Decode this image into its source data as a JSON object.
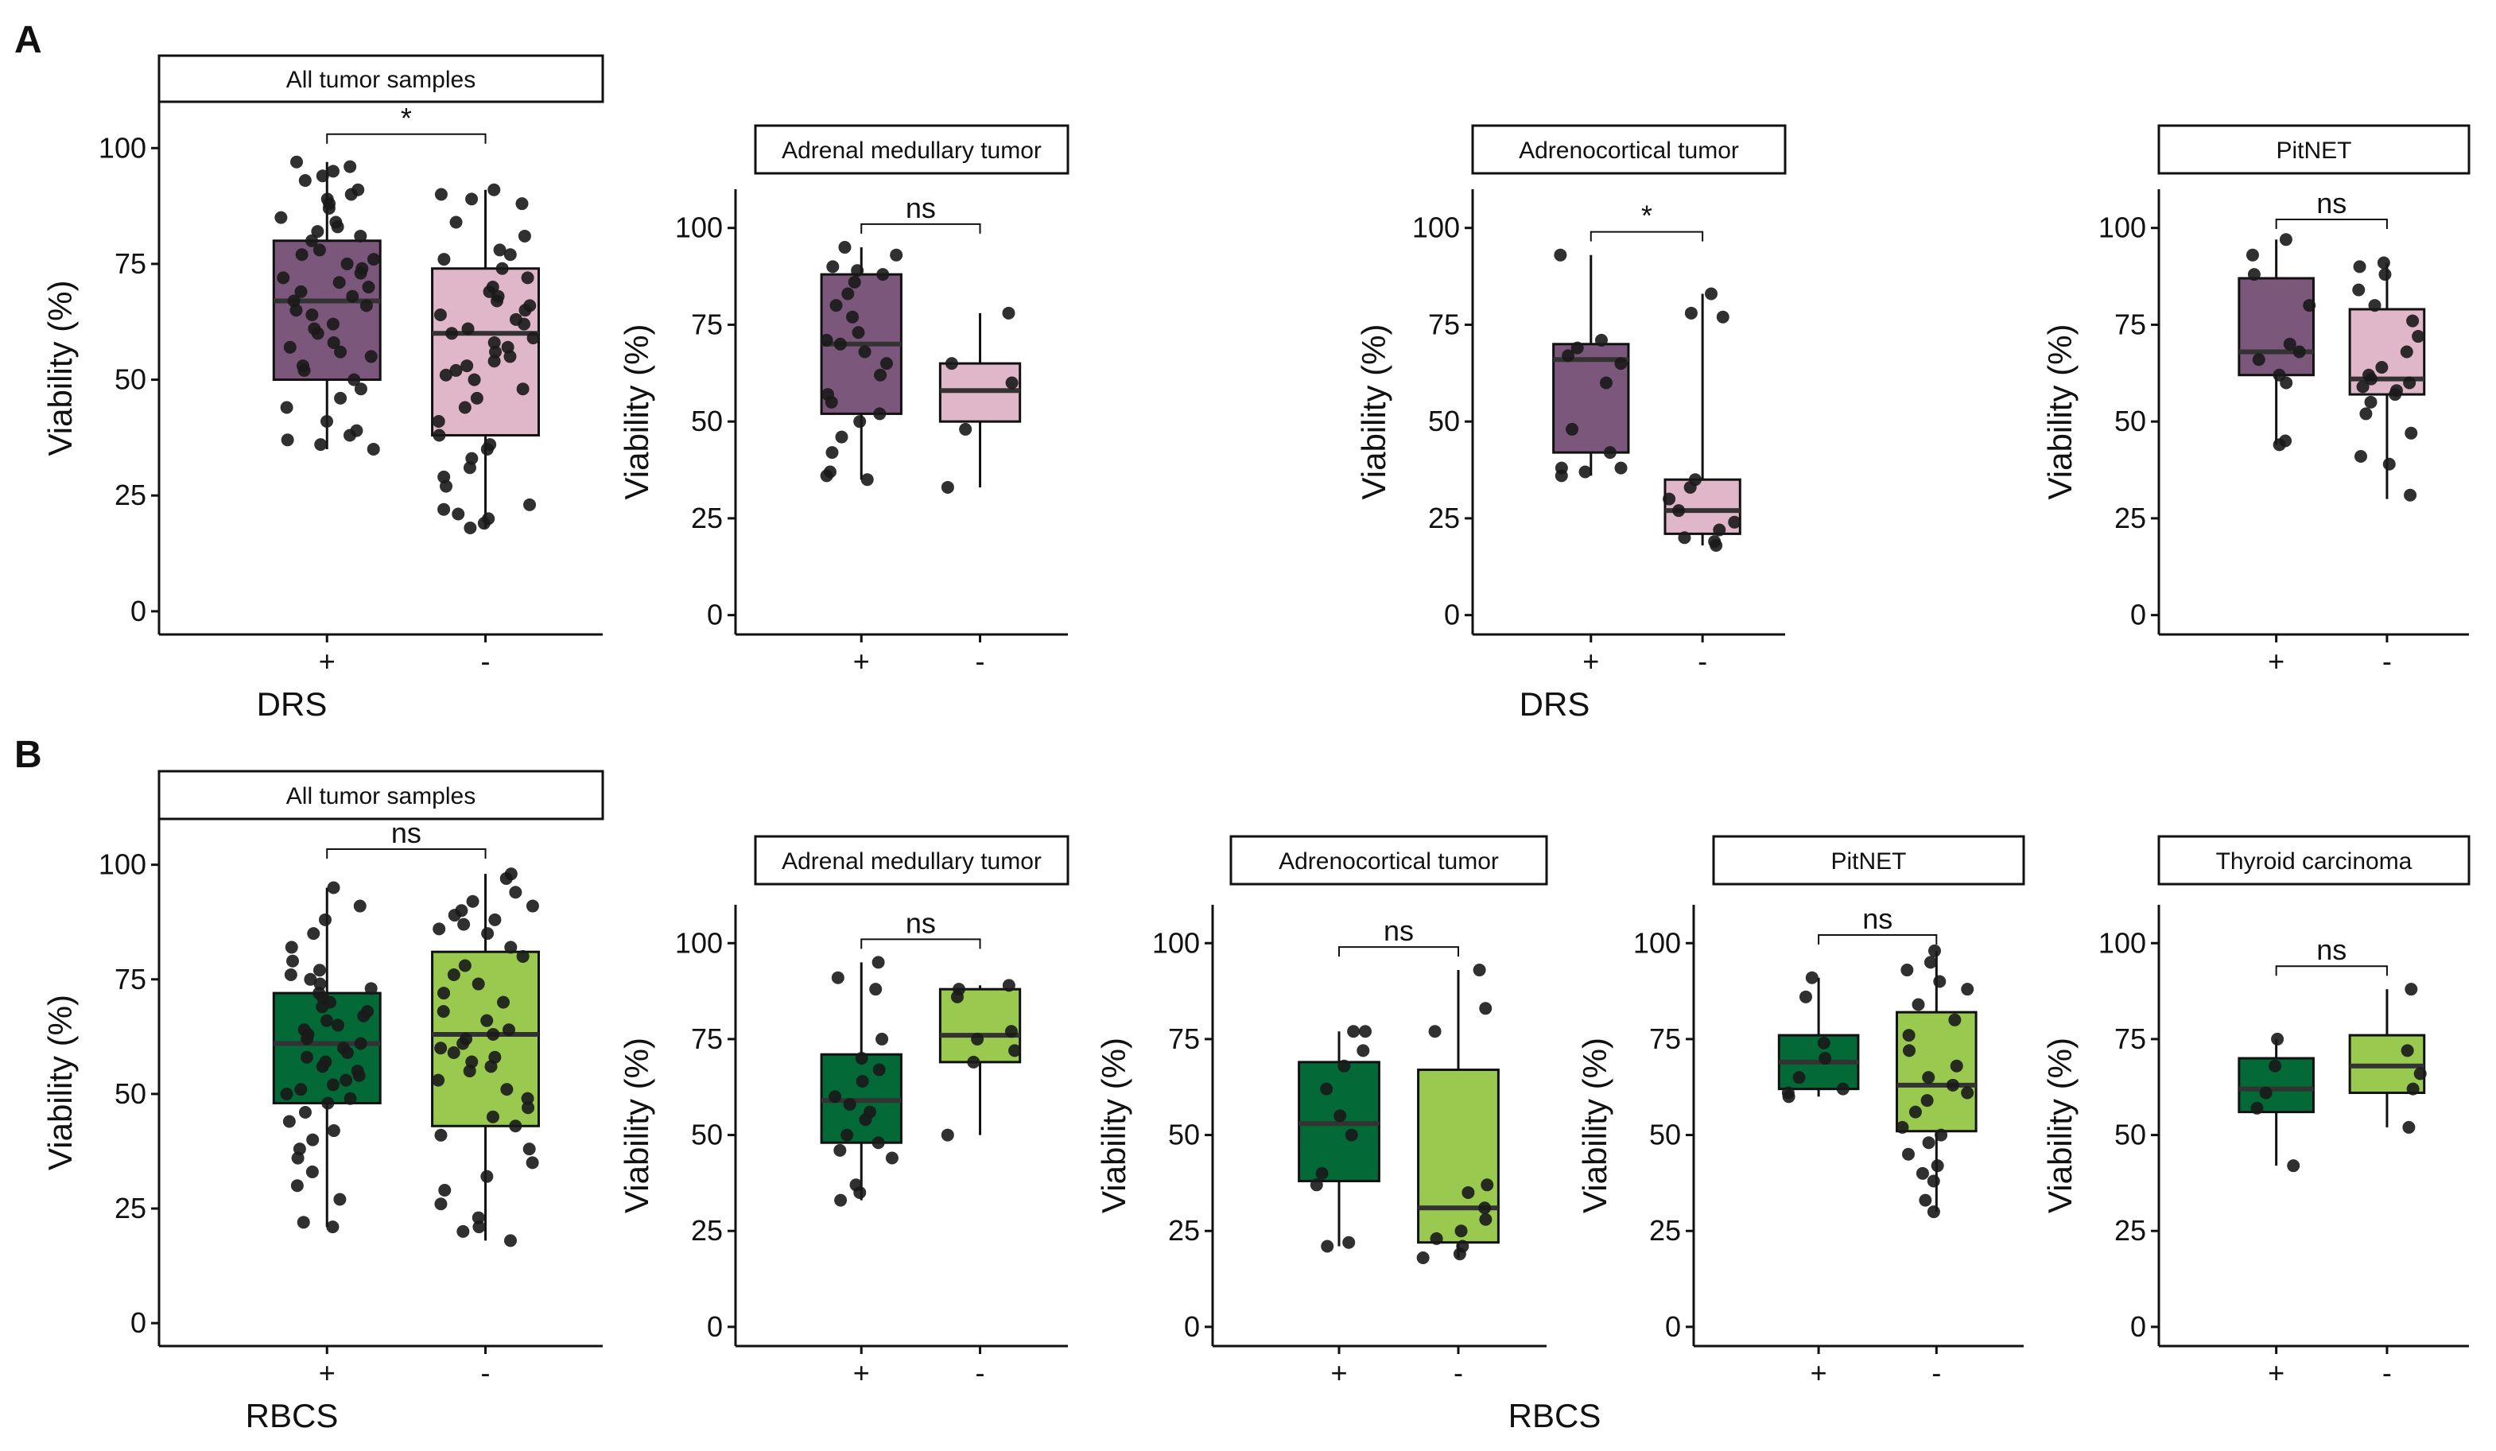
{
  "panel_labels": [
    "A",
    "B"
  ],
  "colors": {
    "drs_plus": "#7b577b",
    "drs_minus": "#e0b6c9",
    "rbcs_plus": "#036a37",
    "rbcs_minus": "#99c94f",
    "axis": "#111111",
    "point": "#1a1a1a"
  },
  "chart_data": [
    {
      "id": "A1",
      "type": "box",
      "row": "A",
      "facet": "All tumor samples",
      "marker": "DRS",
      "xlabel": "DRS",
      "ylabel": "Viability (%)",
      "categories": [
        "+",
        "-"
      ],
      "yticks": [
        0,
        25,
        50,
        75,
        100
      ],
      "ylim": [
        -5,
        110
      ],
      "significance": "*",
      "boxes": [
        {
          "category": "+",
          "q1": 50,
          "median": 67,
          "q3": 80,
          "whisker_low": 35,
          "whisker_high": 97,
          "points": [
            97,
            96,
            95,
            94,
            93,
            91,
            90,
            89,
            88,
            87,
            85,
            84,
            83,
            82,
            81,
            80,
            78,
            77,
            76,
            75,
            74,
            73,
            72,
            71,
            70,
            69,
            68,
            67,
            66,
            65,
            64,
            62,
            61,
            60,
            58,
            57,
            56,
            55,
            53,
            52,
            50,
            48,
            46,
            44,
            41,
            39,
            38,
            37,
            36,
            35
          ]
        },
        {
          "category": "-",
          "q1": 38,
          "median": 60,
          "q3": 74,
          "whisker_low": 18,
          "whisker_high": 91,
          "points": [
            91,
            90,
            89,
            88,
            84,
            81,
            78,
            77,
            76,
            74,
            72,
            70,
            69,
            68,
            67,
            66,
            65,
            64,
            63,
            62,
            61,
            60,
            59,
            58,
            57,
            56,
            55,
            54,
            53,
            52,
            51,
            50,
            48,
            46,
            44,
            41,
            38,
            36,
            35,
            33,
            31,
            29,
            27,
            23,
            22,
            21,
            20,
            19,
            18
          ]
        }
      ]
    },
    {
      "id": "A2",
      "type": "box",
      "row": "A",
      "facet": "Adrenal medullary tumor",
      "marker": "DRS",
      "xlabel": "",
      "ylabel": "Viability (%)",
      "categories": [
        "+",
        "-"
      ],
      "yticks": [
        0,
        25,
        50,
        75,
        100
      ],
      "ylim": [
        -5,
        110
      ],
      "significance": "ns",
      "boxes": [
        {
          "category": "+",
          "q1": 52,
          "median": 70,
          "q3": 88,
          "whisker_low": 35,
          "whisker_high": 95,
          "points": [
            95,
            93,
            90,
            89,
            88,
            86,
            83,
            80,
            77,
            73,
            71,
            70,
            68,
            65,
            62,
            57,
            55,
            52,
            50,
            46,
            42,
            37,
            36,
            35
          ]
        },
        {
          "category": "-",
          "q1": 50,
          "median": 58,
          "q3": 65,
          "whisker_low": 33,
          "whisker_high": 78,
          "points": [
            78,
            65,
            60,
            48,
            33
          ]
        }
      ]
    },
    {
      "id": "A3",
      "type": "box",
      "row": "A",
      "facet": "Adrenocortical tumor",
      "marker": "DRS",
      "xlabel": "DRS",
      "ylabel": "Viability (%)",
      "categories": [
        "+",
        "-"
      ],
      "yticks": [
        0,
        25,
        50,
        75,
        100
      ],
      "ylim": [
        -5,
        110
      ],
      "significance": "*",
      "boxes": [
        {
          "category": "+",
          "q1": 42,
          "median": 66,
          "q3": 70,
          "whisker_low": 36,
          "whisker_high": 93,
          "points": [
            93,
            71,
            69,
            67,
            65,
            60,
            48,
            42,
            38,
            38,
            37,
            36
          ]
        },
        {
          "category": "-",
          "q1": 21,
          "median": 27,
          "q3": 35,
          "whisker_low": 18,
          "whisker_high": 83,
          "points": [
            83,
            78,
            77,
            35,
            33,
            30,
            27,
            24,
            22,
            20,
            19,
            18
          ]
        }
      ]
    },
    {
      "id": "A4",
      "type": "box",
      "row": "A",
      "facet": "PitNET",
      "marker": "DRS",
      "xlabel": "",
      "ylabel": "Viability (%)",
      "categories": [
        "+",
        "-"
      ],
      "yticks": [
        0,
        25,
        50,
        75,
        100
      ],
      "ylim": [
        -5,
        110
      ],
      "significance": "ns",
      "boxes": [
        {
          "category": "+",
          "q1": 62,
          "median": 68,
          "q3": 87,
          "whisker_low": 44,
          "whisker_high": 97,
          "points": [
            97,
            93,
            88,
            80,
            70,
            68,
            66,
            62,
            60,
            45,
            44
          ]
        },
        {
          "category": "-",
          "q1": 57,
          "median": 61,
          "q3": 79,
          "whisker_low": 30,
          "whisker_high": 91,
          "points": [
            91,
            90,
            88,
            84,
            80,
            76,
            72,
            68,
            64,
            62,
            61,
            60,
            59,
            58,
            57,
            55,
            52,
            47,
            41,
            39,
            31
          ]
        }
      ]
    },
    {
      "id": "B1",
      "type": "box",
      "row": "B",
      "facet": "All tumor samples",
      "marker": "RBCS",
      "xlabel": "RBCS",
      "ylabel": "Viability (%)",
      "categories": [
        "+",
        "-"
      ],
      "yticks": [
        0,
        25,
        50,
        75,
        100
      ],
      "ylim": [
        -5,
        110
      ],
      "significance": "ns",
      "boxes": [
        {
          "category": "+",
          "q1": 48,
          "median": 61,
          "q3": 72,
          "whisker_low": 21,
          "whisker_high": 95,
          "points": [
            95,
            91,
            88,
            85,
            82,
            79,
            77,
            76,
            75,
            74,
            73,
            72,
            71,
            70,
            69,
            68,
            67,
            66,
            65,
            64,
            63,
            62,
            61,
            60,
            59,
            58,
            57,
            56,
            55,
            54,
            53,
            52,
            51,
            50,
            49,
            48,
            46,
            44,
            42,
            40,
            38,
            36,
            33,
            30,
            27,
            22,
            21
          ]
        },
        {
          "category": "-",
          "q1": 43,
          "median": 63,
          "q3": 81,
          "whisker_low": 18,
          "whisker_high": 98,
          "points": [
            98,
            97,
            94,
            92,
            91,
            90,
            89,
            88,
            87,
            86,
            85,
            82,
            80,
            78,
            76,
            74,
            72,
            70,
            68,
            66,
            64,
            63,
            62,
            61,
            60,
            59,
            58,
            57,
            56,
            55,
            53,
            51,
            49,
            47,
            45,
            43,
            41,
            38,
            35,
            32,
            29,
            26,
            23,
            21,
            20,
            18
          ]
        }
      ]
    },
    {
      "id": "B2",
      "type": "box",
      "row": "B",
      "facet": "Adrenal medullary tumor",
      "marker": "RBCS",
      "xlabel": "",
      "ylabel": "Viability (%)",
      "categories": [
        "+",
        "-"
      ],
      "yticks": [
        0,
        25,
        50,
        75,
        100
      ],
      "ylim": [
        -5,
        110
      ],
      "significance": "ns",
      "boxes": [
        {
          "category": "+",
          "q1": 48,
          "median": 59,
          "q3": 71,
          "whisker_low": 33,
          "whisker_high": 95,
          "points": [
            95,
            91,
            88,
            75,
            70,
            67,
            64,
            60,
            58,
            56,
            54,
            50,
            48,
            46,
            44,
            37,
            35,
            33
          ]
        },
        {
          "category": "-",
          "q1": 69,
          "median": 76,
          "q3": 88,
          "whisker_low": 50,
          "whisker_high": 89,
          "points": [
            89,
            88,
            86,
            77,
            75,
            72,
            69,
            50
          ]
        }
      ]
    },
    {
      "id": "B3",
      "type": "box",
      "row": "B",
      "facet": "Adrenocortical tumor",
      "marker": "RBCS",
      "xlabel": "RBCS",
      "ylabel": "Viability (%)",
      "categories": [
        "+",
        "-"
      ],
      "yticks": [
        0,
        25,
        50,
        75,
        100
      ],
      "ylim": [
        -5,
        110
      ],
      "significance": "ns",
      "boxes": [
        {
          "category": "+",
          "q1": 38,
          "median": 53,
          "q3": 69,
          "whisker_low": 21,
          "whisker_high": 77,
          "points": [
            77,
            77,
            72,
            68,
            62,
            55,
            50,
            40,
            37,
            22,
            21
          ]
        },
        {
          "category": "-",
          "q1": 22,
          "median": 31,
          "q3": 67,
          "whisker_low": 18,
          "whisker_high": 93,
          "points": [
            93,
            83,
            77,
            37,
            35,
            31,
            28,
            25,
            23,
            21,
            19,
            18
          ]
        }
      ]
    },
    {
      "id": "B4",
      "type": "box",
      "row": "B",
      "facet": "PitNET",
      "marker": "RBCS",
      "xlabel": "",
      "ylabel": "Viability (%)",
      "categories": [
        "+",
        "-"
      ],
      "yticks": [
        0,
        25,
        50,
        75,
        100
      ],
      "ylim": [
        -5,
        110
      ],
      "significance": "ns",
      "boxes": [
        {
          "category": "+",
          "q1": 62,
          "median": 69,
          "q3": 76,
          "whisker_low": 60,
          "whisker_high": 91,
          "points": [
            91,
            86,
            74,
            70,
            65,
            62,
            61,
            60
          ]
        },
        {
          "category": "-",
          "q1": 51,
          "median": 63,
          "q3": 82,
          "whisker_low": 30,
          "whisker_high": 98,
          "points": [
            98,
            95,
            93,
            90,
            88,
            84,
            80,
            76,
            72,
            68,
            65,
            63,
            61,
            59,
            56,
            52,
            50,
            48,
            45,
            42,
            40,
            38,
            33,
            30
          ]
        }
      ]
    },
    {
      "id": "B5",
      "type": "box",
      "row": "B",
      "facet": "Thyroid carcinoma",
      "marker": "RBCS",
      "xlabel": "",
      "ylabel": "Viability (%)",
      "categories": [
        "+",
        "-"
      ],
      "yticks": [
        0,
        25,
        50,
        75,
        100
      ],
      "ylim": [
        -5,
        110
      ],
      "significance": "ns",
      "boxes": [
        {
          "category": "+",
          "q1": 56,
          "median": 62,
          "q3": 70,
          "whisker_low": 42,
          "whisker_high": 75,
          "points": [
            75,
            68,
            61,
            57,
            42
          ]
        },
        {
          "category": "-",
          "q1": 61,
          "median": 68,
          "q3": 76,
          "whisker_low": 52,
          "whisker_high": 88,
          "points": [
            88,
            72,
            66,
            62,
            52
          ]
        }
      ]
    }
  ]
}
